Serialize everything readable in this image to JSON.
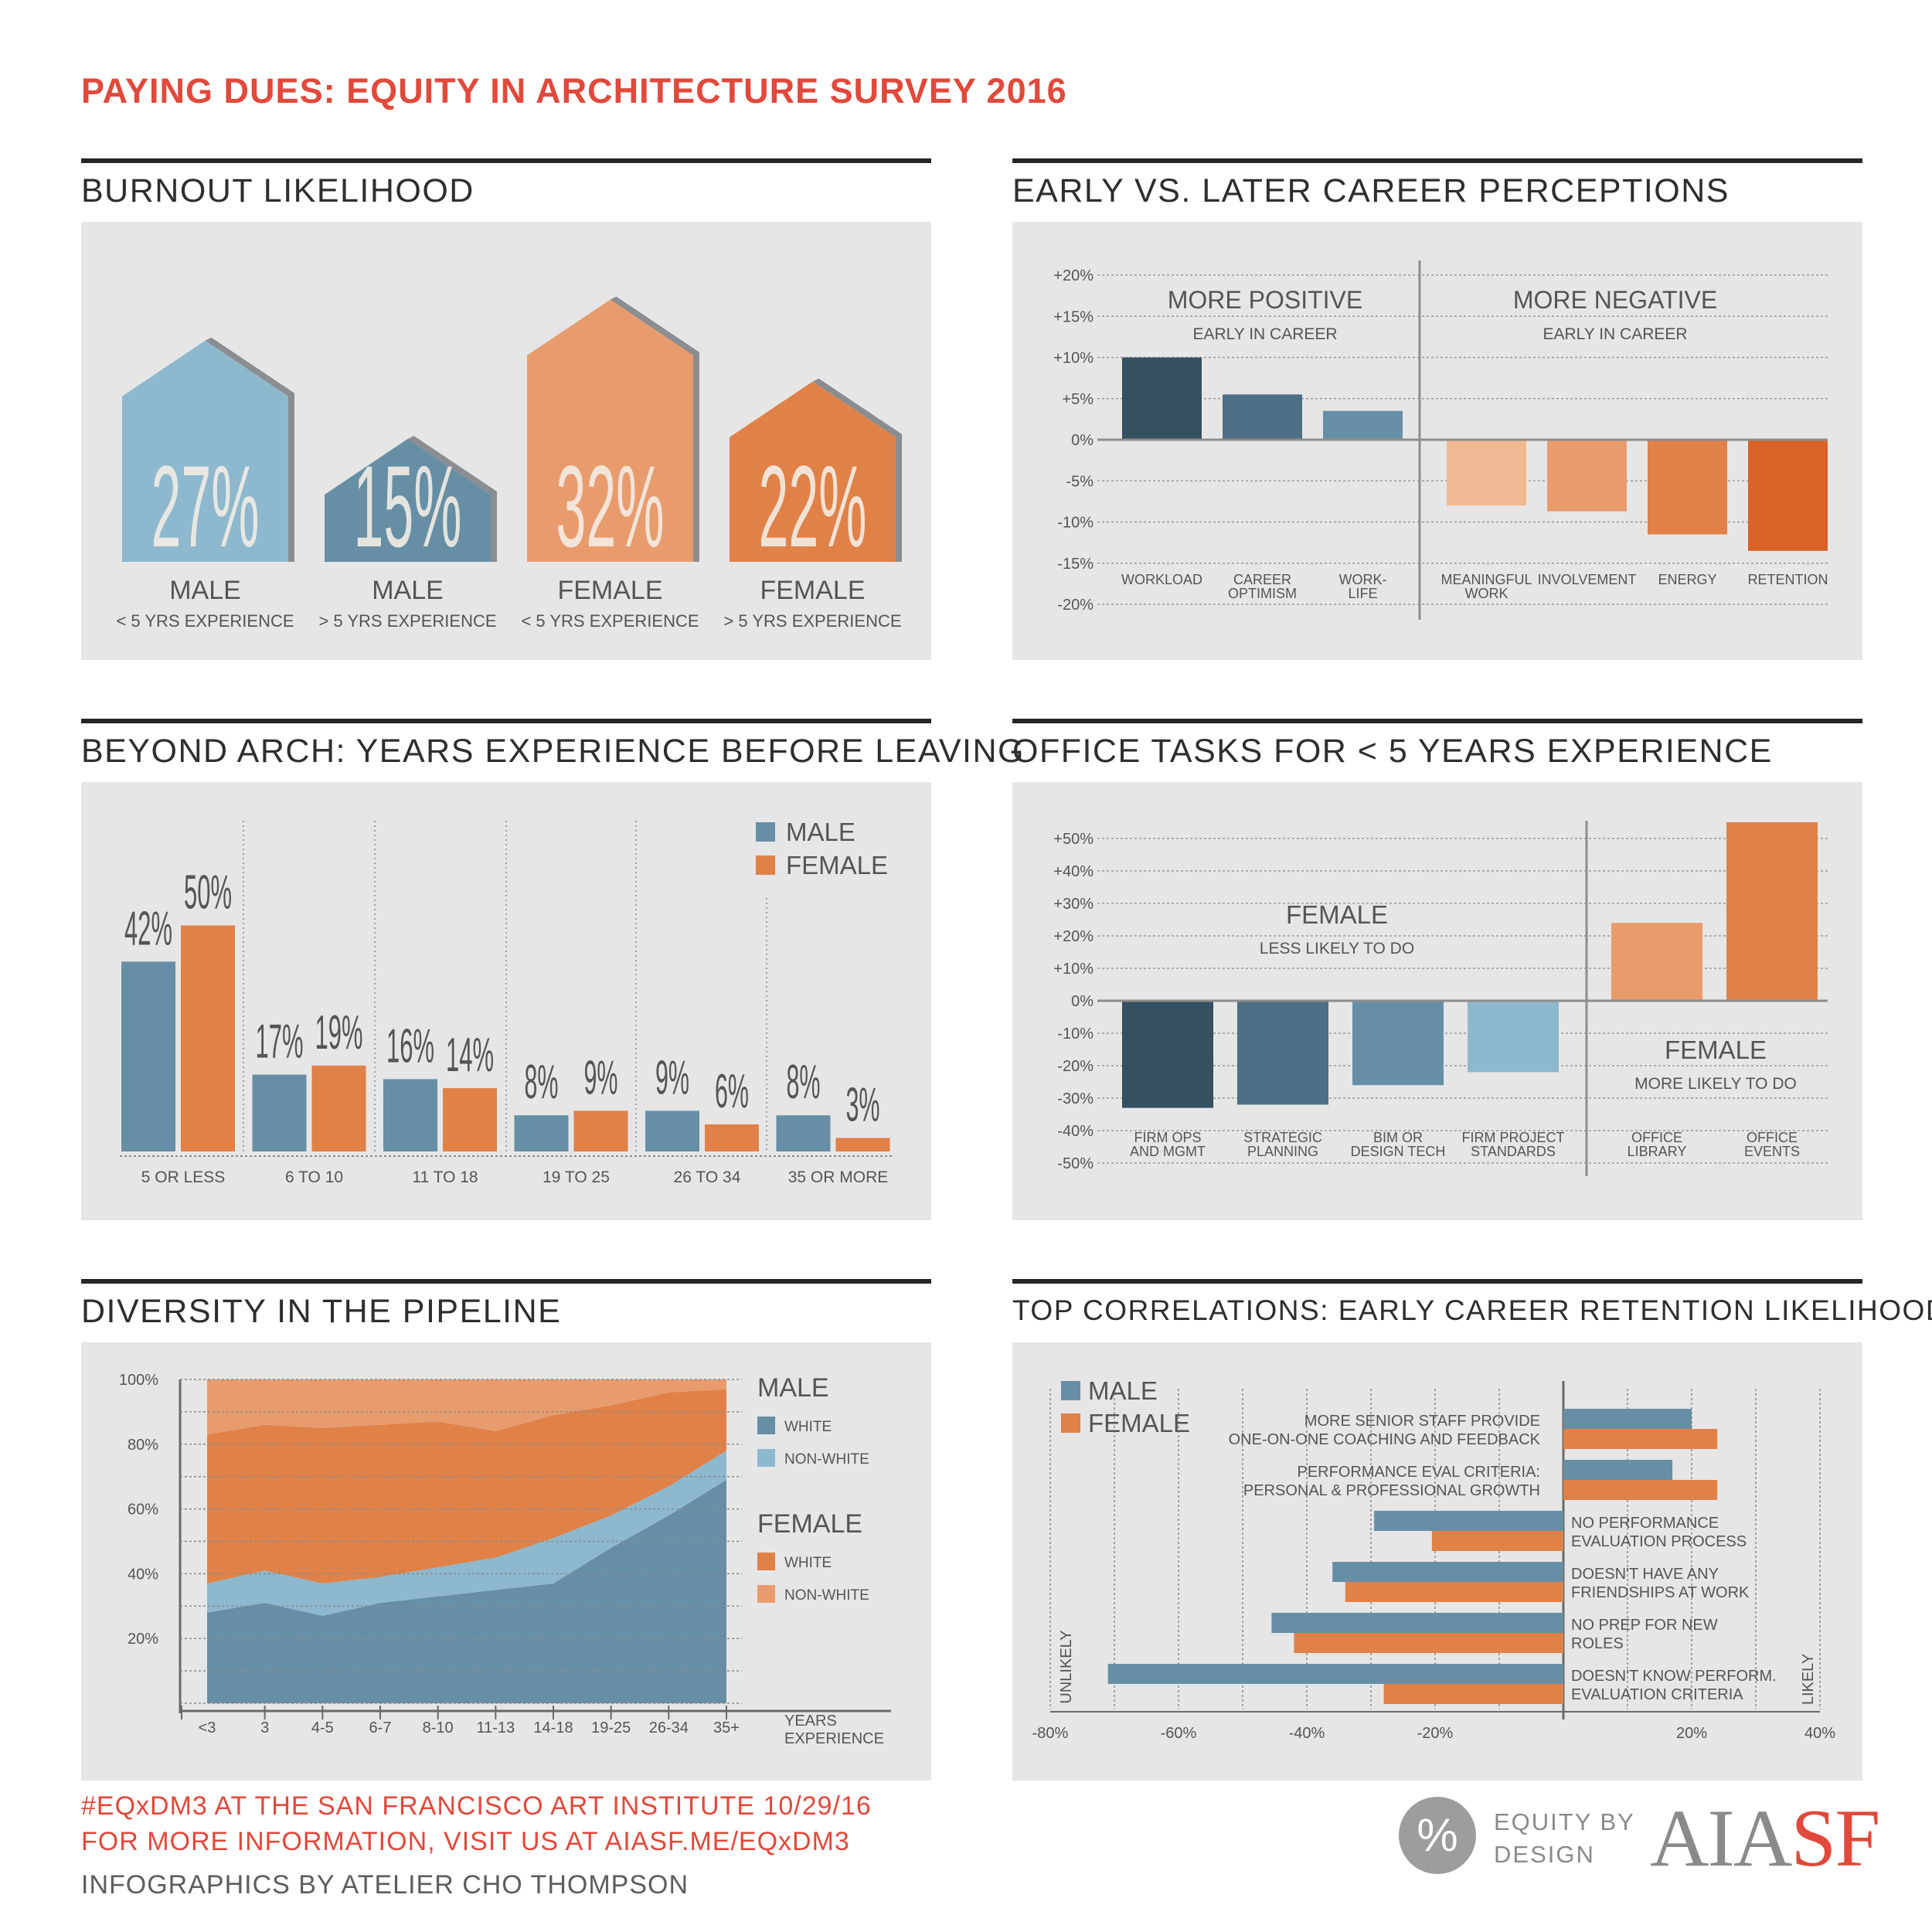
{
  "title": "PAYING DUES: EQUITY IN ARCHITECTURE SURVEY 2016",
  "colors": {
    "red": "#e0493b",
    "blue_dark": "#35505f",
    "blue_mid": "#4e6f84",
    "blue": "#668fa6",
    "blue_light": "#8db8ce",
    "orange_light": "#f1b991",
    "orange": "#e89c6d",
    "orange_mid": "#e08148",
    "orange_dark": "#da6127",
    "panel": "#e6e6e6"
  },
  "sections": {
    "burnout": "BURNOUT LIKELIHOOD",
    "career": "EARLY VS. LATER CAREER PERCEPTIONS",
    "beyond": "BEYOND ARCH: YEARS EXPERIENCE BEFORE LEAVING",
    "tasks": "OFFICE TASKS FOR < 5 YEARS EXPERIENCE",
    "diversity": "DIVERSITY IN THE PIPELINE",
    "correlations": "TOP CORRELATIONS: EARLY CAREER RETENTION LIKELIHOOD"
  },
  "chart_data": [
    {
      "id": "burnout",
      "type": "bar",
      "title": "BURNOUT LIKELIHOOD",
      "categories": [
        {
          "label": "MALE",
          "sublabel": "< 5 YRS EXPERIENCE",
          "value": 27,
          "display": "27%",
          "color": "#8db8ce"
        },
        {
          "label": "MALE",
          "sublabel": "> 5 YRS EXPERIENCE",
          "value": 15,
          "display": "15%",
          "color": "#668fa6"
        },
        {
          "label": "FEMALE",
          "sublabel": "< 5 YRS EXPERIENCE",
          "value": 32,
          "display": "32%",
          "color": "#e89c6d"
        },
        {
          "label": "FEMALE",
          "sublabel": "> 5 YRS EXPERIENCE",
          "value": 22,
          "display": "22%",
          "color": "#e08148"
        }
      ]
    },
    {
      "id": "career",
      "type": "bar",
      "title": "EARLY VS. LATER CAREER PERCEPTIONS",
      "ylim": [
        -20,
        20
      ],
      "yticks": [
        {
          "v": 20,
          "t": "+20%"
        },
        {
          "v": 15,
          "t": "+15%"
        },
        {
          "v": 10,
          "t": "+10%"
        },
        {
          "v": 5,
          "t": "+5%"
        },
        {
          "v": 0,
          "t": "0%"
        },
        {
          "v": -5,
          "t": "-5%"
        },
        {
          "v": -10,
          "t": "-10%"
        },
        {
          "v": -15,
          "t": "-15%"
        },
        {
          "v": -20,
          "t": "-20%"
        }
      ],
      "annotations": [
        {
          "title": "MORE POSITIVE",
          "sub": "EARLY IN CAREER"
        },
        {
          "title": "MORE NEGATIVE",
          "sub": "EARLY IN CAREER"
        }
      ],
      "categories": [
        {
          "label": [
            "WORKLOAD"
          ],
          "value": 10,
          "color": "#35505f"
        },
        {
          "label": [
            "CAREER",
            "OPTIMISM"
          ],
          "value": 5.5,
          "color": "#4e6f84"
        },
        {
          "label": [
            "WORK-",
            "LIFE"
          ],
          "value": 3.5,
          "color": "#668fa6"
        },
        {
          "label": [
            "MEANINGFUL",
            "WORK"
          ],
          "value": -8,
          "color": "#f1b991"
        },
        {
          "label": [
            "INVOLVEMENT"
          ],
          "value": -8.7,
          "color": "#e89c6d"
        },
        {
          "label": [
            "ENERGY"
          ],
          "value": -11.5,
          "color": "#e08148"
        },
        {
          "label": [
            "RETENTION"
          ],
          "value": -13.5,
          "color": "#da6127"
        }
      ]
    },
    {
      "id": "beyond",
      "type": "bar",
      "title": "BEYOND ARCH: YEARS EXPERIENCE BEFORE LEAVING",
      "categories": [
        "5 OR LESS",
        "6 TO 10",
        "11 TO 18",
        "19 TO 25",
        "26 TO 34",
        "35 OR MORE"
      ],
      "series": [
        {
          "name": "MALE",
          "color": "#668fa6",
          "values": [
            42,
            17,
            16,
            8,
            9,
            8
          ],
          "labels": [
            "42%",
            "17%",
            "16%",
            "8%",
            "9%",
            "8%"
          ]
        },
        {
          "name": "FEMALE",
          "color": "#e08148",
          "values": [
            50,
            19,
            14,
            9,
            6,
            3
          ],
          "labels": [
            "50%",
            "19%",
            "14%",
            "9%",
            "6%",
            "3%"
          ]
        }
      ]
    },
    {
      "id": "tasks",
      "type": "bar",
      "title": "OFFICE TASKS FOR < 5 YEARS EXPERIENCE",
      "ylim": [
        -50,
        50
      ],
      "yticks": [
        {
          "v": 50,
          "t": "+50%"
        },
        {
          "v": 40,
          "t": "+40%"
        },
        {
          "v": 30,
          "t": "+30%"
        },
        {
          "v": 20,
          "t": "+20%"
        },
        {
          "v": 10,
          "t": "+10%"
        },
        {
          "v": 0,
          "t": "0%"
        },
        {
          "v": -10,
          "t": "-10%"
        },
        {
          "v": -20,
          "t": "-20%"
        },
        {
          "v": -30,
          "t": "-30%"
        },
        {
          "v": -40,
          "t": "-40%"
        },
        {
          "v": -50,
          "t": "-50%"
        }
      ],
      "annotations": [
        {
          "title": "FEMALE",
          "sub": "LESS LIKELY TO DO"
        },
        {
          "title": "FEMALE",
          "sub": "MORE LIKELY TO DO"
        }
      ],
      "categories": [
        {
          "label": [
            "FIRM OPS",
            "AND MGMT"
          ],
          "value": -33,
          "color": "#35505f"
        },
        {
          "label": [
            "STRATEGIC",
            "PLANNING"
          ],
          "value": -32,
          "color": "#4e6f84"
        },
        {
          "label": [
            "BIM OR",
            "DESIGN TECH"
          ],
          "value": -26,
          "color": "#668fa6"
        },
        {
          "label": [
            "FIRM PROJECT",
            "STANDARDS"
          ],
          "value": -22,
          "color": "#8db8ce"
        },
        {
          "label": [
            "OFFICE",
            "LIBRARY"
          ],
          "value": 24,
          "color": "#e89c6d"
        },
        {
          "label": [
            "OFFICE",
            "EVENTS"
          ],
          "value": 55,
          "color": "#e08148"
        }
      ]
    },
    {
      "id": "diversity",
      "type": "area",
      "title": "DIVERSITY IN THE PIPELINE",
      "stacked": true,
      "ylim": [
        0,
        100
      ],
      "yticks": [
        "100%",
        "80%",
        "60%",
        "40%",
        "20%"
      ],
      "x": [
        "<3",
        "3",
        "4-5",
        "6-7",
        "8-10",
        "11-13",
        "14-18",
        "19-25",
        "26-34",
        "35+"
      ],
      "xlabel": [
        "YEARS",
        "EXPERIENCE"
      ],
      "legend_groups": [
        {
          "name": "MALE",
          "items": [
            {
              "name": "WHITE",
              "color": "#668fa6"
            },
            {
              "name": "NON-WHITE",
              "color": "#8db8ce"
            }
          ]
        },
        {
          "name": "FEMALE",
          "items": [
            {
              "name": "WHITE",
              "color": "#e08148"
            },
            {
              "name": "NON-WHITE",
              "color": "#e89c6d"
            }
          ]
        }
      ],
      "series": [
        {
          "name": "MALE WHITE",
          "color": "#668fa6",
          "values": [
            28,
            31,
            27,
            31,
            33,
            35,
            37,
            48,
            58,
            69
          ]
        },
        {
          "name": "MALE NON-WHITE",
          "color": "#8db8ce",
          "values": [
            9,
            10,
            10,
            8,
            9,
            10,
            14,
            10,
            9,
            9
          ]
        },
        {
          "name": "FEMALE WHITE",
          "color": "#e08148",
          "values": [
            46,
            45,
            48,
            47,
            45,
            39,
            38,
            34,
            29,
            19
          ]
        },
        {
          "name": "FEMALE NON-WHITE",
          "color": "#e89c6d",
          "values": [
            17,
            14,
            15,
            14,
            13,
            16,
            11,
            8,
            4,
            3
          ]
        }
      ]
    },
    {
      "id": "correlations",
      "type": "bar",
      "orientation": "horizontal",
      "title": "TOP CORRELATIONS: EARLY CAREER RETENTION LIKELIHOOD",
      "xlim": [
        -80,
        40
      ],
      "xticks": [
        {
          "v": -80,
          "t": "-80%"
        },
        {
          "v": -60,
          "t": "-60%"
        },
        {
          "v": -40,
          "t": "-40%"
        },
        {
          "v": -20,
          "t": "-20%"
        },
        {
          "v": 20,
          "t": "20%"
        },
        {
          "v": 40,
          "t": "40%"
        }
      ],
      "left_label": "UNLIKELY",
      "right_label": "LIKELY",
      "categories": [
        {
          "label": [
            "MORE SENIOR STAFF PROVIDE",
            "ONE-ON-ONE COACHING AND FEEDBACK"
          ],
          "side": "left"
        },
        {
          "label": [
            "PERFORMANCE EVAL CRITERIA:",
            "PERSONAL & PROFESSIONAL GROWTH"
          ],
          "side": "left"
        },
        {
          "label": [
            "NO PERFORMANCE",
            "EVALUATION PROCESS"
          ],
          "side": "right"
        },
        {
          "label": [
            "DOESN'T HAVE ANY",
            "FRIENDSHIPS AT WORK"
          ],
          "side": "right"
        },
        {
          "label": [
            "NO PREP FOR NEW",
            "ROLES"
          ],
          "side": "right"
        },
        {
          "label": [
            "DOESN'T KNOW PERFORM.",
            "EVALUATION CRITERIA"
          ],
          "side": "right"
        }
      ],
      "series": [
        {
          "name": "MALE",
          "color": "#668fa6",
          "values": [
            20,
            17,
            -29.5,
            -36,
            -45.5,
            -71
          ]
        },
        {
          "name": "FEMALE",
          "color": "#e08148",
          "values": [
            24,
            24,
            -20.5,
            -34,
            -42,
            -28
          ]
        }
      ]
    }
  ],
  "footer": {
    "line1": "#EQxDM3 AT THE SAN FRANCISCO ART INSTITUTE 10/29/16",
    "line2": "FOR MORE INFORMATION, VISIT US AT AIASF.ME/EQxDM3",
    "credit": "INFOGRAPHICS BY ATELIER CHO THOMPSON"
  },
  "logos": {
    "equity_symbol": "%",
    "equity_line1": "EQUITY BY",
    "equity_line2": "DESIGN",
    "aia_part": "AIA",
    "sf_part": "SF"
  }
}
